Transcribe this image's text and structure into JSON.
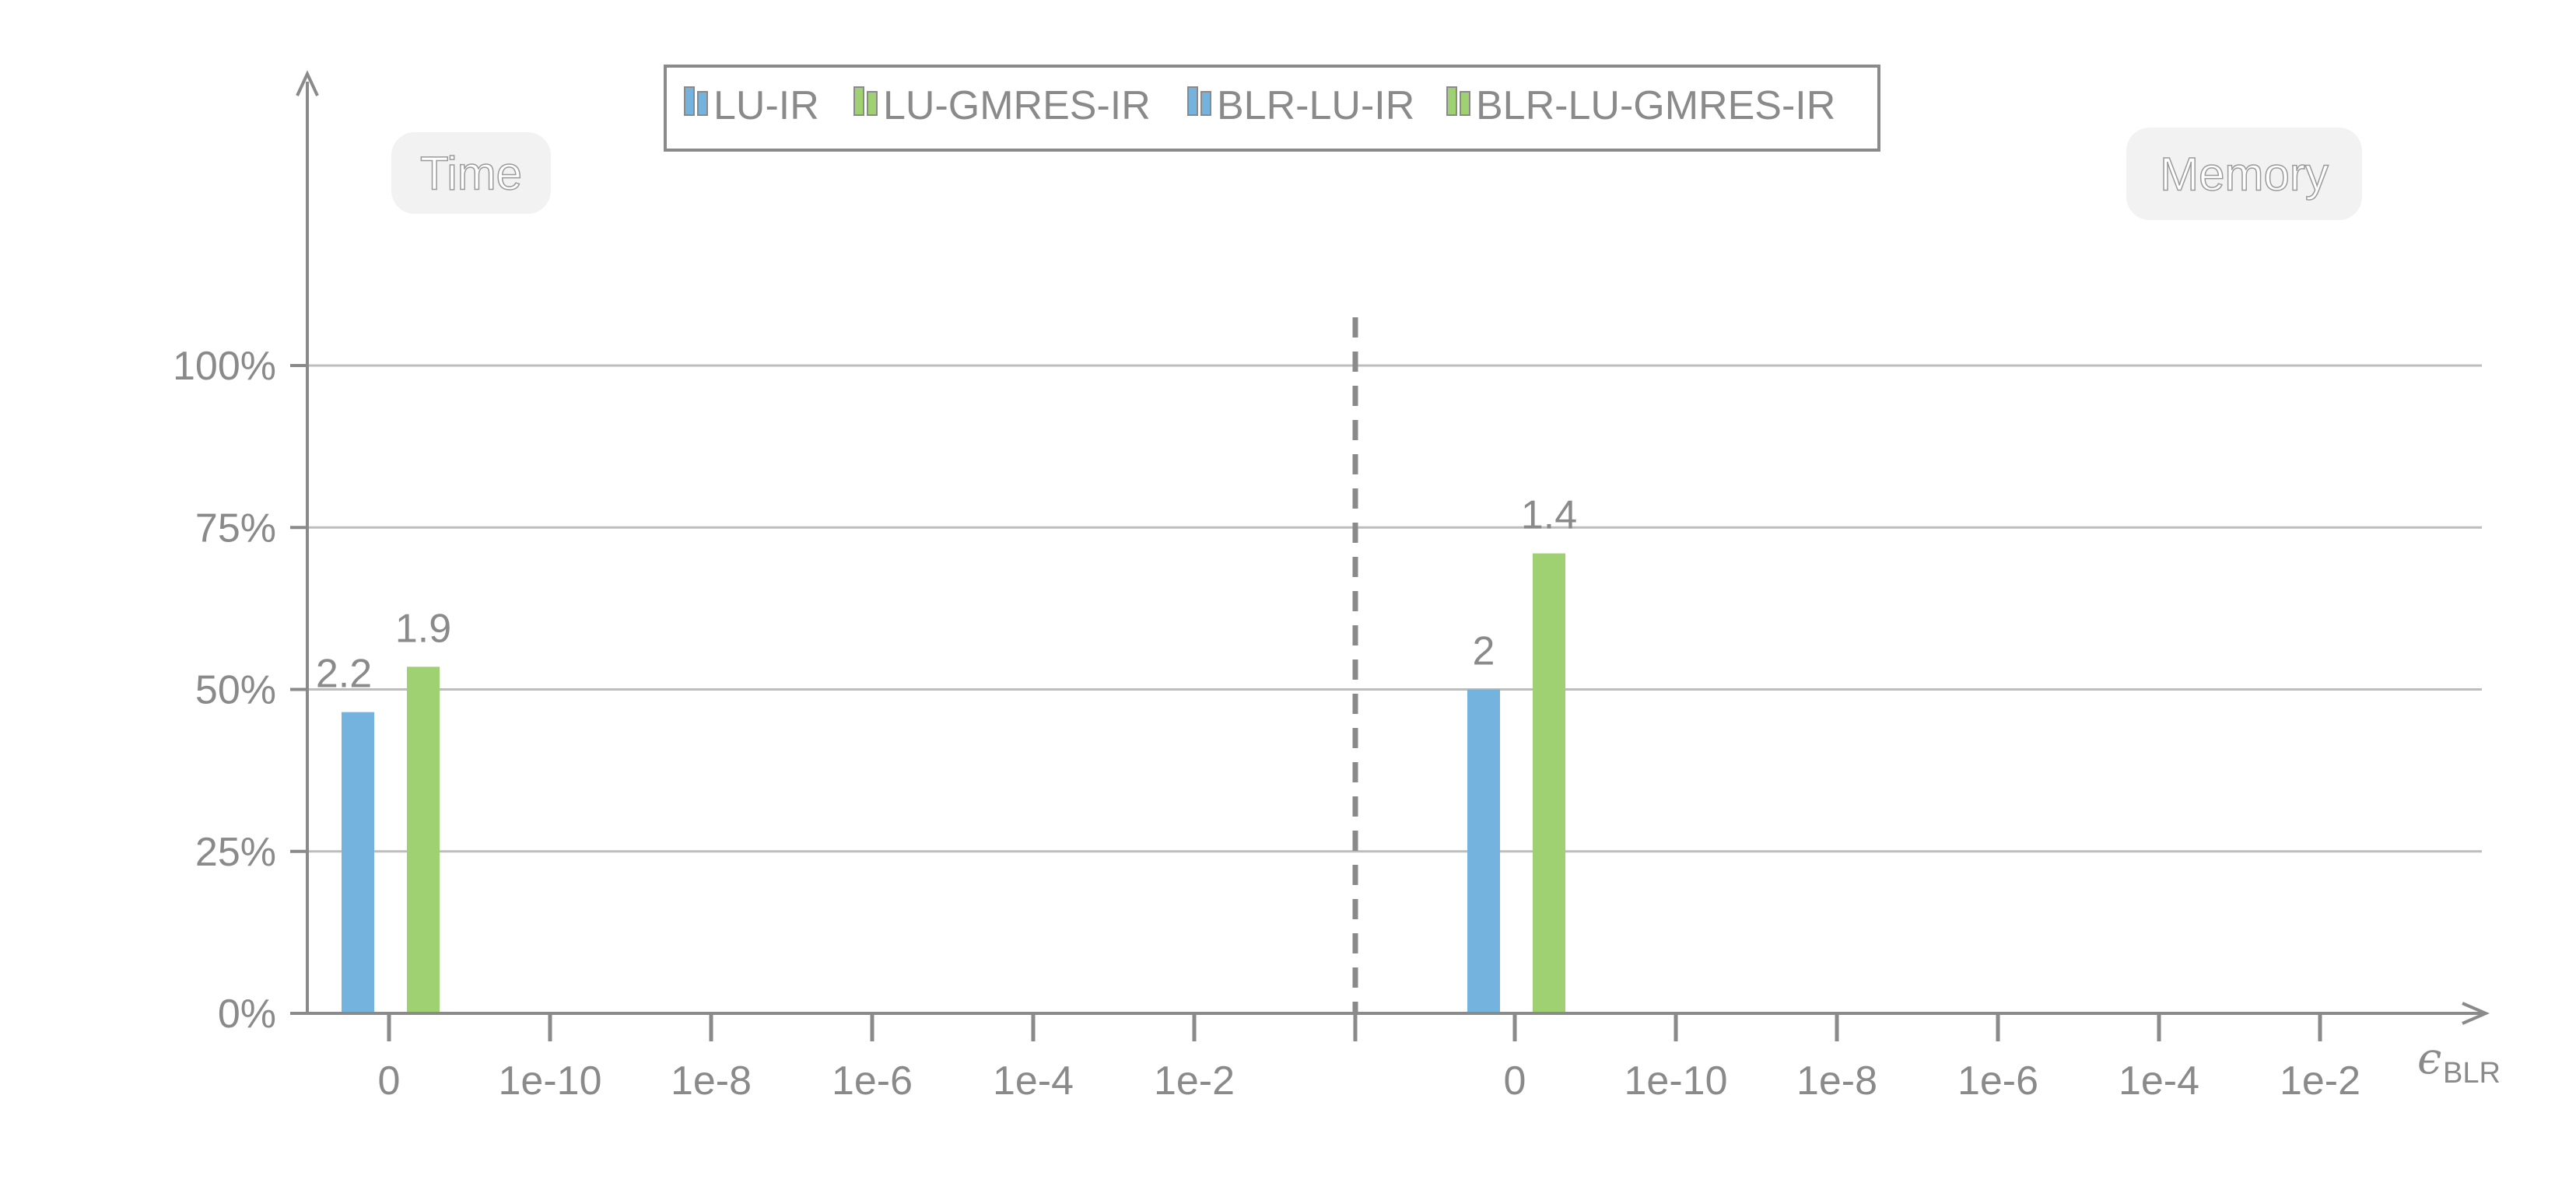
{
  "chart_data": {
    "type": "bar",
    "panels": [
      {
        "name": "Time",
        "categories": [
          "0",
          "1e-10",
          "1e-8",
          "1e-6",
          "1e-4",
          "1e-2"
        ],
        "series": [
          {
            "name": "LU-IR",
            "values": [
              46.5,
              null,
              null,
              null,
              null,
              null
            ],
            "labels": [
              "2.2",
              "",
              "",
              "",
              "",
              ""
            ]
          },
          {
            "name": "LU-GMRES-IR",
            "values": [
              53.5,
              null,
              null,
              null,
              null,
              null
            ],
            "labels": [
              "1.9",
              "",
              "",
              "",
              "",
              ""
            ]
          },
          {
            "name": "BLR-LU-IR",
            "values": [
              null,
              null,
              null,
              null,
              null,
              null
            ],
            "labels": [
              "",
              "",
              "",
              "",
              "",
              ""
            ]
          },
          {
            "name": "BLR-LU-GMRES-IR",
            "values": [
              null,
              null,
              null,
              null,
              null,
              null
            ],
            "labels": [
              "",
              "",
              "",
              "",
              "",
              ""
            ]
          }
        ]
      },
      {
        "name": "Memory",
        "categories": [
          "0",
          "1e-10",
          "1e-8",
          "1e-6",
          "1e-4",
          "1e-2"
        ],
        "series": [
          {
            "name": "LU-IR",
            "values": [
              50,
              null,
              null,
              null,
              null,
              null
            ],
            "labels": [
              "2",
              "",
              "",
              "",
              "",
              ""
            ]
          },
          {
            "name": "LU-GMRES-IR",
            "values": [
              71,
              null,
              null,
              null,
              null,
              null
            ],
            "labels": [
              "1.4",
              "",
              "",
              "",
              "",
              ""
            ]
          },
          {
            "name": "BLR-LU-IR",
            "values": [
              null,
              null,
              null,
              null,
              null,
              null
            ],
            "labels": [
              "",
              "",
              "",
              "",
              "",
              ""
            ]
          },
          {
            "name": "BLR-LU-GMRES-IR",
            "values": [
              null,
              null,
              null,
              null,
              null,
              null
            ],
            "labels": [
              "",
              "",
              "",
              "",
              "",
              ""
            ]
          }
        ]
      }
    ],
    "y_ticks": [
      "0%",
      "25%",
      "50%",
      "75%",
      "100%"
    ],
    "ylim": [
      0,
      100
    ],
    "grid": true,
    "xlabel": {
      "symbol": "ϵ",
      "subscript": "BLR"
    },
    "legend": {
      "placement": "top-center",
      "entries": [
        {
          "name": "LU-IR",
          "color": "#74b3dd"
        },
        {
          "name": "LU-GMRES-IR",
          "color": "#9fd172"
        },
        {
          "name": "BLR-LU-IR",
          "color": "#74b3dd"
        },
        {
          "name": "BLR-LU-GMRES-IR",
          "color": "#9fd172"
        }
      ]
    },
    "colors": {
      "blue": "#74b3dd",
      "green": "#9fd172",
      "axis": "#8a8a8a",
      "grid": "#bdbdbd"
    }
  }
}
